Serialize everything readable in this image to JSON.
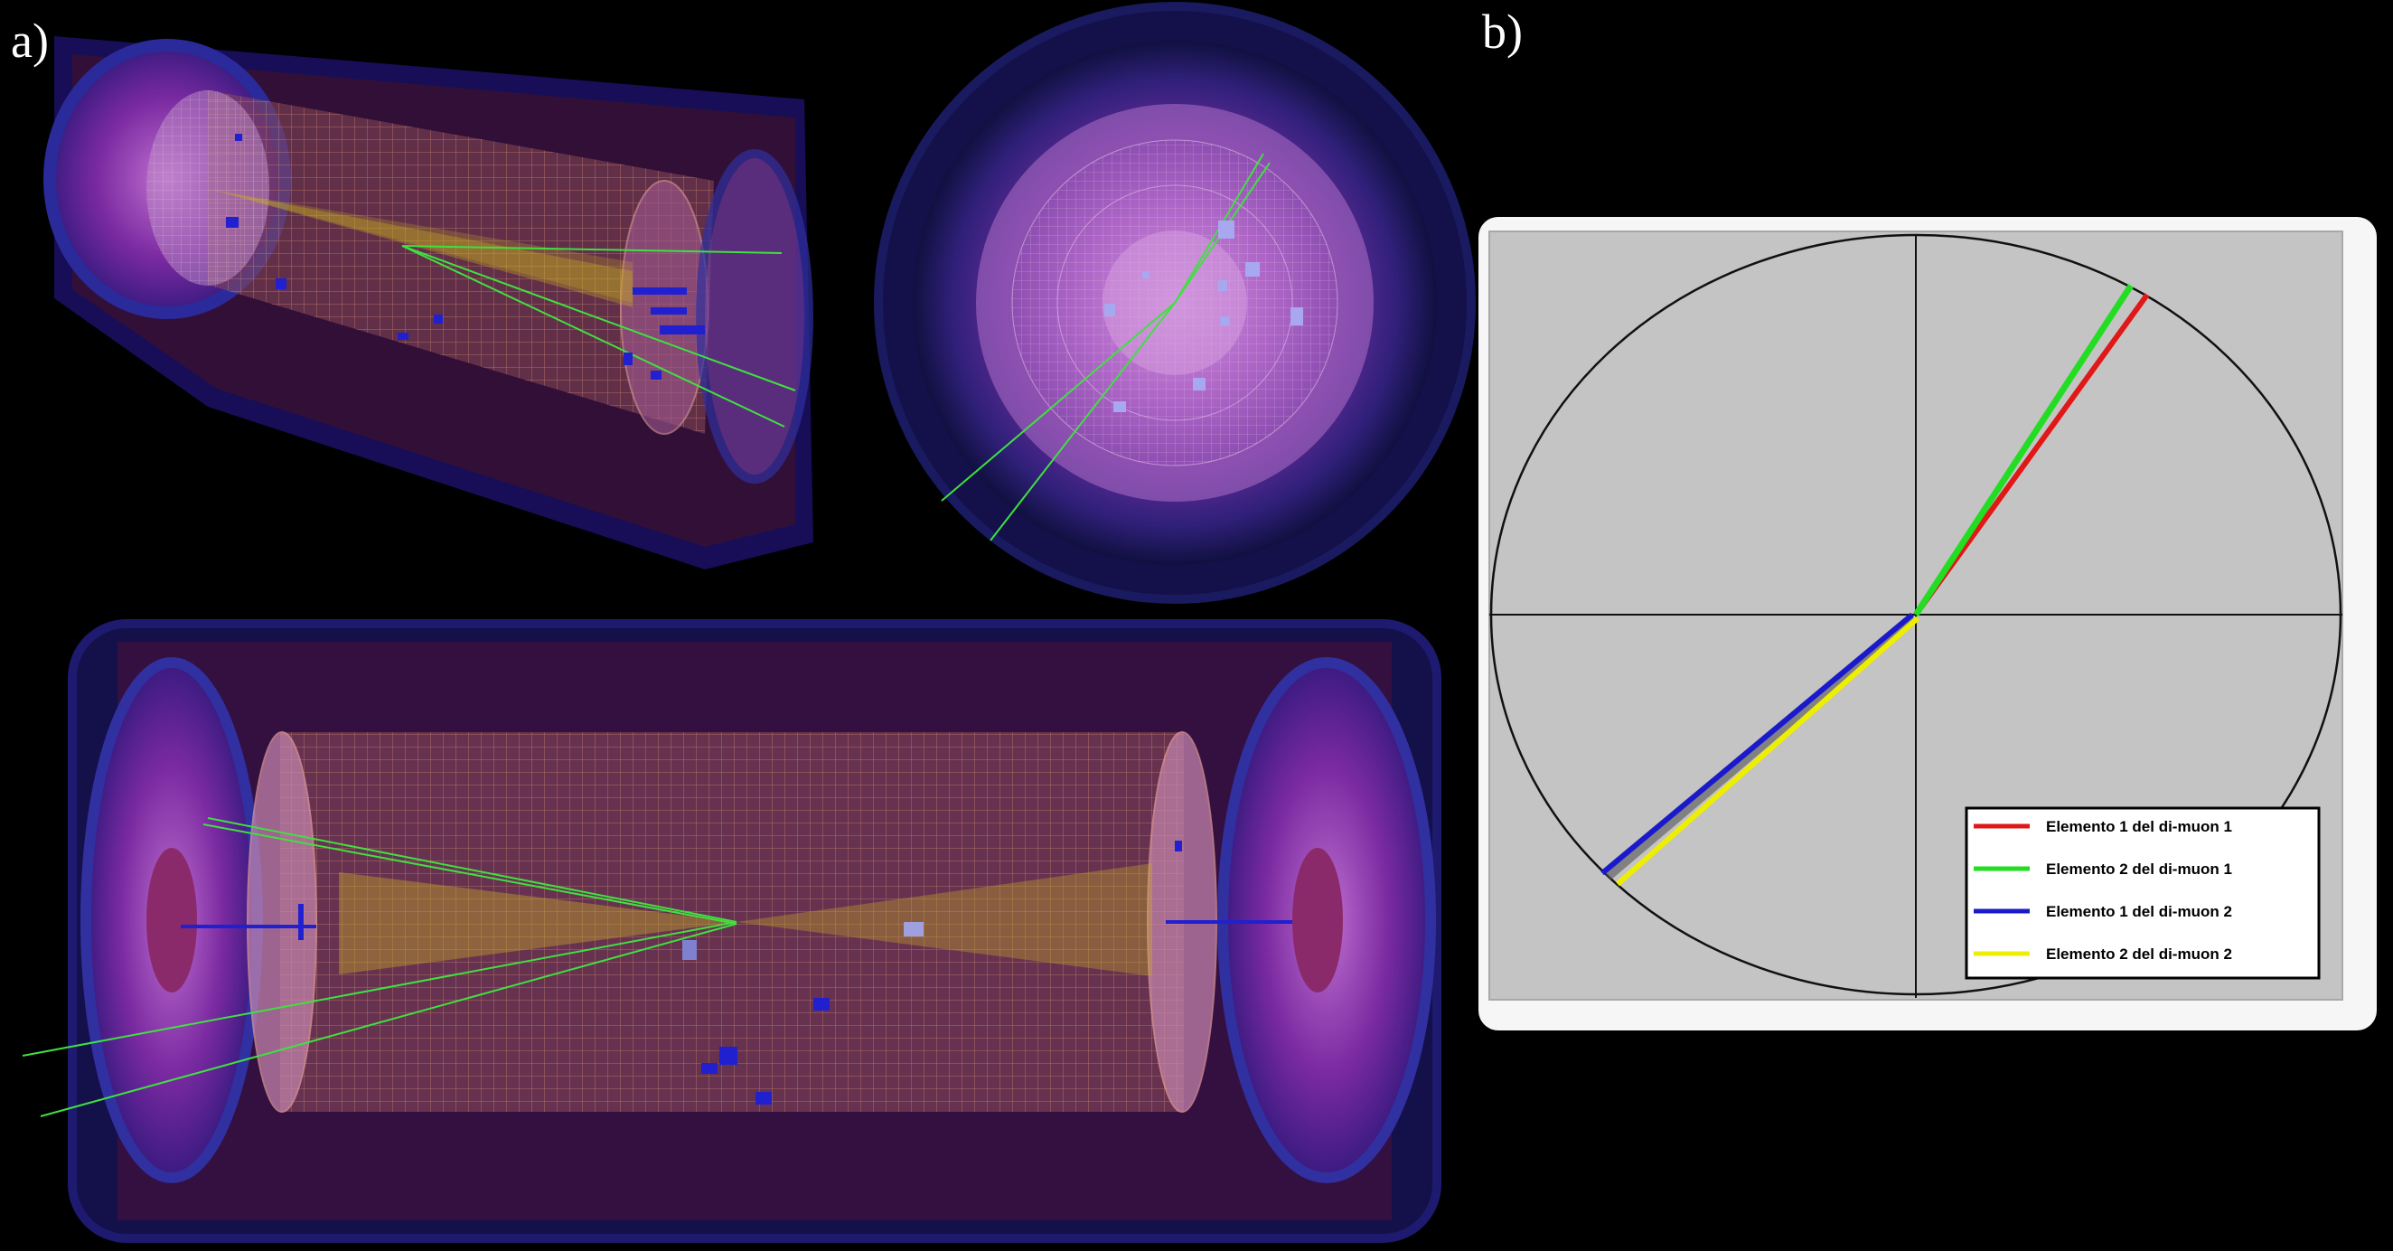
{
  "panel_a": {
    "label": "a)"
  },
  "panel_b": {
    "label": "b)",
    "legend": [
      {
        "text": "Elemento 1 del di-muon 1",
        "color": "#e01818"
      },
      {
        "text": "Elemento 2 del di-muon 1",
        "color": "#22dd22"
      },
      {
        "text": "Elemento 1 del di-muon 2",
        "color": "#1a1acc"
      },
      {
        "text": "Elemento 2 del di-muon 2",
        "color": "#eeee00"
      }
    ]
  }
}
